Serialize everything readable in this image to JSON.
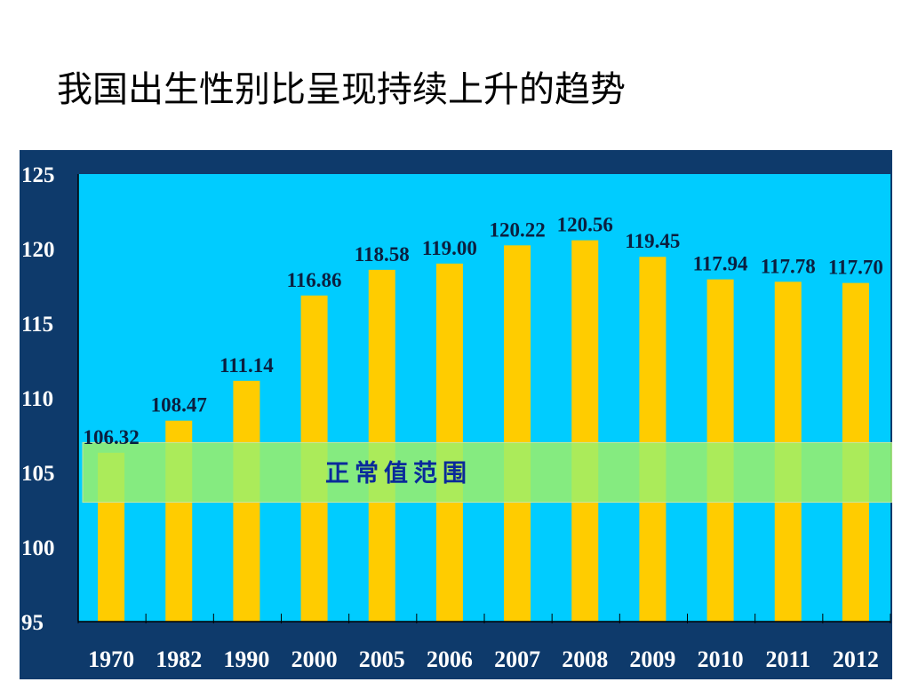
{
  "slide": {
    "title": "我国出生性别比呈现持续上升的趋势"
  },
  "colors": {
    "panel": "#0e3a6b",
    "plot_bg": "#00ccff",
    "bar": "#ffcc00",
    "band": "#9cf06a",
    "band_text": "#0a2a9a"
  },
  "chart_data": {
    "type": "bar",
    "categories": [
      "1970",
      "1982",
      "1990",
      "2000",
      "2005",
      "2006",
      "2007",
      "2008",
      "2009",
      "2010",
      "2011",
      "2012"
    ],
    "values": [
      106.32,
      108.47,
      111.14,
      116.86,
      118.58,
      119.0,
      120.22,
      120.56,
      119.45,
      117.94,
      117.78,
      117.7
    ],
    "value_labels": [
      "106.32",
      "108.47",
      "111.14",
      "116.86",
      "118.58",
      "119.00",
      "120.22",
      "120.56",
      "119.45",
      "117.94",
      "117.78",
      "117.70"
    ],
    "ylim": [
      95,
      125
    ],
    "yticks": [
      95,
      100,
      105,
      110,
      115,
      120,
      125
    ],
    "grid": false,
    "annotation": {
      "text": "正常值范围",
      "range": [
        103,
        107
      ]
    }
  }
}
